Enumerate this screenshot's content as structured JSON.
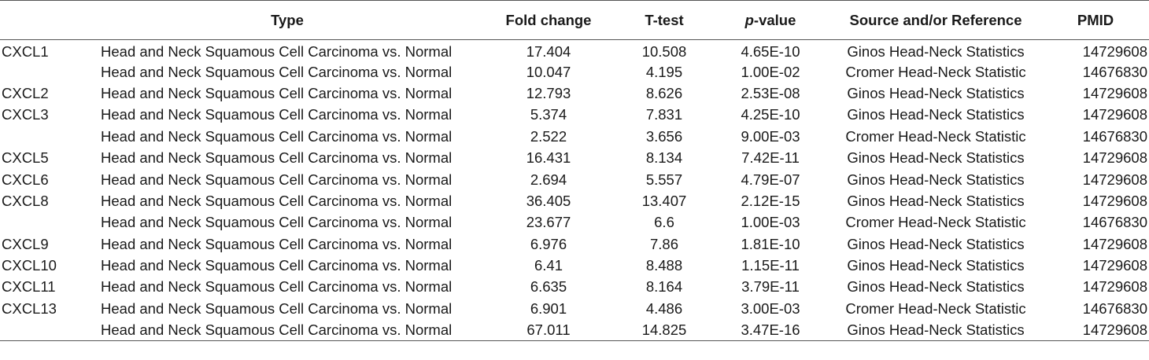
{
  "table": {
    "headers": {
      "gene": "",
      "type": "Type",
      "fold": "Fold change",
      "ttest": "T-test",
      "pvalue_italic": "p",
      "pvalue_rest": "-value",
      "source": "Source and/or Reference",
      "pmid": "PMID"
    },
    "rows": [
      {
        "gene": "CXCL1",
        "type": "Head and Neck Squamous Cell Carcinoma vs. Normal",
        "fold": "17.404",
        "ttest": "10.508",
        "pvalue": "4.65E-10",
        "source": "Ginos Head-Neck Statistics",
        "pmid": "14729608"
      },
      {
        "gene": "",
        "type": "Head and Neck Squamous Cell Carcinoma vs. Normal",
        "fold": "10.047",
        "ttest": "4.195",
        "pvalue": "1.00E-02",
        "source": "Cromer Head-Neck Statistic",
        "pmid": "14676830"
      },
      {
        "gene": "CXCL2",
        "type": "Head and Neck Squamous Cell Carcinoma vs. Normal",
        "fold": "12.793",
        "ttest": "8.626",
        "pvalue": "2.53E-08",
        "source": "Ginos Head-Neck Statistics",
        "pmid": "14729608"
      },
      {
        "gene": "CXCL3",
        "type": "Head and Neck Squamous Cell Carcinoma vs. Normal",
        "fold": "5.374",
        "ttest": "7.831",
        "pvalue": "4.25E-10",
        "source": "Ginos Head-Neck Statistics",
        "pmid": "14729608"
      },
      {
        "gene": "",
        "type": "Head and Neck Squamous Cell Carcinoma vs. Normal",
        "fold": "2.522",
        "ttest": "3.656",
        "pvalue": "9.00E-03",
        "source": "Cromer Head-Neck Statistic",
        "pmid": "14676830"
      },
      {
        "gene": "CXCL5",
        "type": "Head and Neck Squamous Cell Carcinoma vs. Normal",
        "fold": "16.431",
        "ttest": "8.134",
        "pvalue": "7.42E-11",
        "source": "Ginos Head-Neck Statistics",
        "pmid": "14729608"
      },
      {
        "gene": "CXCL6",
        "type": "Head and Neck Squamous Cell Carcinoma vs. Normal",
        "fold": "2.694",
        "ttest": "5.557",
        "pvalue": "4.79E-07",
        "source": "Ginos Head-Neck Statistics",
        "pmid": "14729608"
      },
      {
        "gene": "CXCL8",
        "type": "Head and Neck Squamous Cell Carcinoma vs. Normal",
        "fold": "36.405",
        "ttest": "13.407",
        "pvalue": "2.12E-15",
        "source": "Ginos Head-Neck Statistics",
        "pmid": "14729608"
      },
      {
        "gene": "",
        "type": "Head and Neck Squamous Cell Carcinoma vs. Normal",
        "fold": "23.677",
        "ttest": "6.6",
        "pvalue": "1.00E-03",
        "source": "Cromer Head-Neck Statistic",
        "pmid": "14676830"
      },
      {
        "gene": "CXCL9",
        "type": "Head and Neck Squamous Cell Carcinoma vs. Normal",
        "fold": "6.976",
        "ttest": "7.86",
        "pvalue": "1.81E-10",
        "source": "Ginos Head-Neck Statistics",
        "pmid": "14729608"
      },
      {
        "gene": "CXCL10",
        "type": "Head and Neck Squamous Cell Carcinoma vs. Normal",
        "fold": "6.41",
        "ttest": "8.488",
        "pvalue": "1.15E-11",
        "source": "Ginos Head-Neck Statistics",
        "pmid": "14729608"
      },
      {
        "gene": "CXCL11",
        "type": "Head and Neck Squamous Cell Carcinoma vs. Normal",
        "fold": "6.635",
        "ttest": "8.164",
        "pvalue": "3.79E-11",
        "source": "Ginos Head-Neck Statistics",
        "pmid": "14729608"
      },
      {
        "gene": "CXCL13",
        "type": "Head and Neck Squamous Cell Carcinoma vs. Normal",
        "fold": "6.901",
        "ttest": "4.486",
        "pvalue": "3.00E-03",
        "source": "Cromer Head-Neck Statistic",
        "pmid": "14676830"
      },
      {
        "gene": "",
        "type": "Head and Neck Squamous Cell Carcinoma vs. Normal",
        "fold": "67.011",
        "ttest": "14.825",
        "pvalue": "3.47E-16",
        "source": "Ginos Head-Neck Statistics",
        "pmid": "14729608"
      }
    ]
  }
}
